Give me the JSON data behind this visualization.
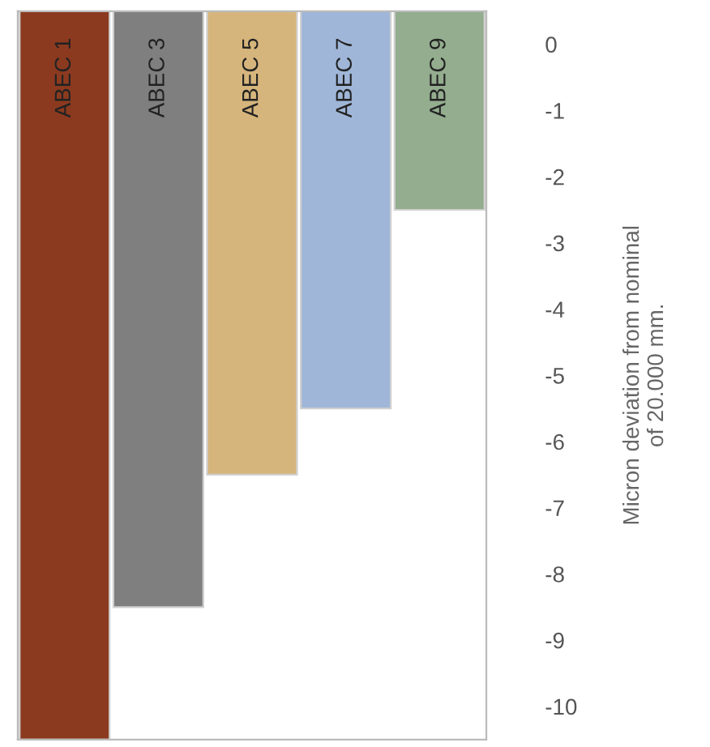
{
  "chart_data": {
    "type": "bar",
    "categories": [
      "ABEC 1",
      "ABEC 3",
      "ABEC 5",
      "ABEC 7",
      "ABEC 9"
    ],
    "base": [
      0.5,
      0.5,
      0.5,
      0.5,
      0.5
    ],
    "values": [
      -11,
      -9,
      -7,
      -6,
      -3
    ],
    "colors": [
      "#8b3a1f",
      "#7f7f7f",
      "#d6b57c",
      "#9fb6d8",
      "#93ad8e"
    ],
    "ylim": [
      -10.5,
      0.5
    ],
    "yticks": [
      0,
      -1,
      -2,
      -3,
      -4,
      -5,
      -6,
      -7,
      -8,
      -9,
      -10
    ],
    "ylabel": "Micron deviation from nominal\nof 20.000 mm.",
    "grid": false,
    "legend": false
  }
}
